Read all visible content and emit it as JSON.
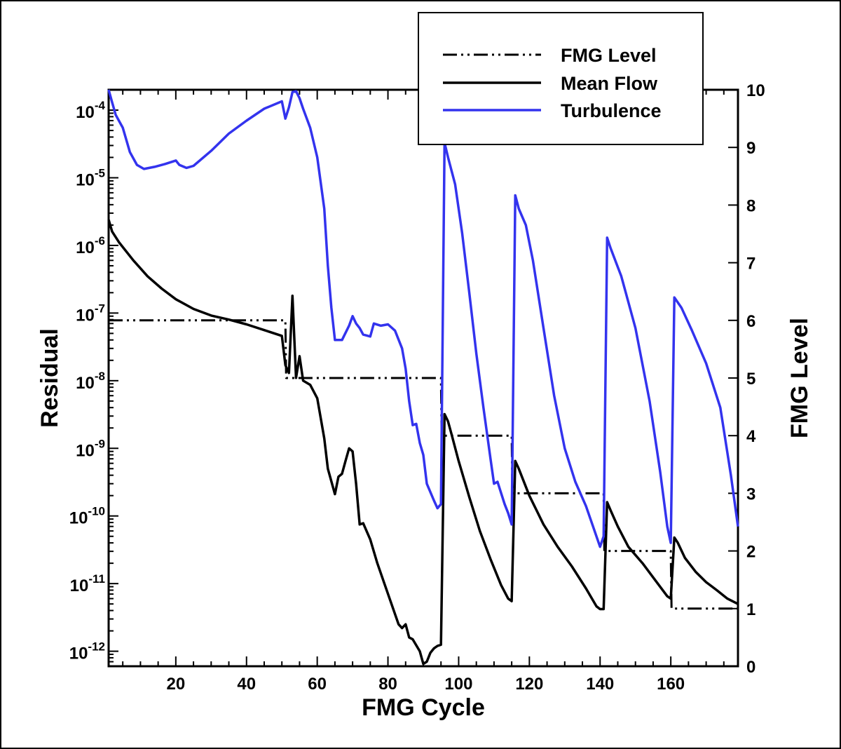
{
  "chart_data": {
    "type": "line",
    "xlabel": "FMG Cycle",
    "ylabel": "Residual",
    "y2label": "FMG Level",
    "xlim": [
      1,
      179
    ],
    "ylim": [
      6e-13,
      0.0002
    ],
    "y_scale": "log",
    "y2lim": [
      0,
      10
    ],
    "x_ticks": [
      {
        "value": 20,
        "label": "20"
      },
      {
        "value": 40,
        "label": "40"
      },
      {
        "value": 60,
        "label": "60"
      },
      {
        "value": 80,
        "label": "80"
      },
      {
        "value": 100,
        "label": "100"
      },
      {
        "value": 120,
        "label": "120"
      },
      {
        "value": 140,
        "label": "140"
      },
      {
        "value": 160,
        "label": "160"
      }
    ],
    "y_ticks": [
      {
        "value": 0.0001,
        "base": "10",
        "exp": "-4"
      },
      {
        "value": 1e-05,
        "base": "10",
        "exp": "-5"
      },
      {
        "value": 1e-06,
        "base": "10",
        "exp": "-6"
      },
      {
        "value": 1e-07,
        "base": "10",
        "exp": "-7"
      },
      {
        "value": 1e-08,
        "base": "10",
        "exp": "-8"
      },
      {
        "value": 1e-09,
        "base": "10",
        "exp": "-9"
      },
      {
        "value": 1e-10,
        "base": "10",
        "exp": "-10"
      },
      {
        "value": 1e-11,
        "base": "10",
        "exp": "-11"
      },
      {
        "value": 1e-12,
        "base": "10",
        "exp": "-12"
      }
    ],
    "y2_ticks": [
      {
        "value": 0,
        "label": "0"
      },
      {
        "value": 1,
        "label": "1"
      },
      {
        "value": 2,
        "label": "2"
      },
      {
        "value": 3,
        "label": "3"
      },
      {
        "value": 4,
        "label": "4"
      },
      {
        "value": 5,
        "label": "5"
      },
      {
        "value": 6,
        "label": "6"
      },
      {
        "value": 7,
        "label": "7"
      },
      {
        "value": 8,
        "label": "8"
      },
      {
        "value": 9,
        "label": "9"
      },
      {
        "value": 10,
        "label": "10"
      }
    ],
    "grid": false,
    "legend": "top-right",
    "series": [
      {
        "name": "FMG Level",
        "axis": "right",
        "color": "#000000",
        "style": "dash-dot-dot",
        "points": [
          [
            1,
            6
          ],
          [
            51,
            6
          ],
          [
            51.2,
            5
          ],
          [
            95,
            5
          ],
          [
            95.2,
            4
          ],
          [
            115,
            4
          ],
          [
            115.2,
            3
          ],
          [
            141,
            3
          ],
          [
            141.2,
            2
          ],
          [
            160,
            2
          ],
          [
            160.2,
            1
          ],
          [
            179,
            1
          ]
        ]
      },
      {
        "name": "Mean Flow",
        "axis": "left",
        "color": "#000000",
        "style": "solid",
        "points": [
          [
            1,
            2.4e-06
          ],
          [
            2,
            1.6e-06
          ],
          [
            4,
            1.1e-06
          ],
          [
            8,
            6e-07
          ],
          [
            12,
            3.5e-07
          ],
          [
            16,
            2.3e-07
          ],
          [
            20,
            1.6e-07
          ],
          [
            25,
            1.15e-07
          ],
          [
            30,
            9.2e-08
          ],
          [
            35,
            8e-08
          ],
          [
            40,
            6.8e-08
          ],
          [
            45,
            5.6e-08
          ],
          [
            50,
            4.6e-08
          ],
          [
            51,
            1.7e-08
          ],
          [
            52,
            1.3e-08
          ],
          [
            53,
            1.8e-07
          ],
          [
            54,
            1.1e-08
          ],
          [
            55,
            2.3e-08
          ],
          [
            56,
            1e-08
          ],
          [
            58,
            8.7e-09
          ],
          [
            60,
            5.5e-09
          ],
          [
            62,
            1.4e-09
          ],
          [
            63,
            5e-10
          ],
          [
            65,
            2.1e-10
          ],
          [
            66,
            3.8e-10
          ],
          [
            67,
            4.2e-10
          ],
          [
            68,
            6.5e-10
          ],
          [
            69,
            1e-09
          ],
          [
            70,
            9e-10
          ],
          [
            71,
            3e-10
          ],
          [
            72,
            7.5e-11
          ],
          [
            73,
            7.8e-11
          ],
          [
            75,
            4.5e-11
          ],
          [
            77,
            2e-11
          ],
          [
            79,
            1e-11
          ],
          [
            81,
            5e-12
          ],
          [
            83,
            2.5e-12
          ],
          [
            84,
            2.2e-12
          ],
          [
            85,
            2.5e-12
          ],
          [
            86,
            1.6e-12
          ],
          [
            87,
            1.5e-12
          ],
          [
            89,
            1e-12
          ],
          [
            90,
            6.5e-13
          ],
          [
            91,
            7e-13
          ],
          [
            92,
            9.5e-13
          ],
          [
            93,
            1.1e-12
          ],
          [
            94,
            1.2e-12
          ],
          [
            95,
            1.25e-12
          ],
          [
            96,
            3.2e-09
          ],
          [
            97,
            2.5e-09
          ],
          [
            98,
            1.6e-09
          ],
          [
            100,
            6.5e-10
          ],
          [
            103,
            1.9e-10
          ],
          [
            106,
            6e-11
          ],
          [
            109,
            2.3e-11
          ],
          [
            112,
            9.5e-12
          ],
          [
            114,
            6e-12
          ],
          [
            115,
            5.5e-12
          ],
          [
            116,
            6.5e-10
          ],
          [
            117,
            5e-10
          ],
          [
            120,
            2e-10
          ],
          [
            124,
            7.5e-11
          ],
          [
            128,
            3.5e-11
          ],
          [
            132,
            1.8e-11
          ],
          [
            136,
            8.5e-12
          ],
          [
            139,
            4.6e-12
          ],
          [
            140,
            4.2e-12
          ],
          [
            141,
            4.2e-12
          ],
          [
            142,
            1.6e-10
          ],
          [
            143,
            1.2e-10
          ],
          [
            145,
            7e-11
          ],
          [
            148,
            3.5e-11
          ],
          [
            152,
            2e-11
          ],
          [
            156,
            1.05e-11
          ],
          [
            159,
            6.5e-12
          ],
          [
            160,
            6e-12
          ],
          [
            161,
            4.8e-11
          ],
          [
            162,
            4e-11
          ],
          [
            164,
            2.4e-11
          ],
          [
            167,
            1.5e-11
          ],
          [
            170,
            1.05e-11
          ],
          [
            173,
            8e-12
          ],
          [
            176,
            6e-12
          ],
          [
            179,
            5e-12
          ]
        ]
      },
      {
        "name": "Turbulence",
        "axis": "left",
        "color": "#3333ee",
        "style": "solid",
        "points": [
          [
            1,
            0.0002
          ],
          [
            2,
            0.00013
          ],
          [
            3,
            8.5e-05
          ],
          [
            5,
            5.5e-05
          ],
          [
            7,
            2.4e-05
          ],
          [
            9,
            1.55e-05
          ],
          [
            11,
            1.35e-05
          ],
          [
            14,
            1.45e-05
          ],
          [
            17,
            1.6e-05
          ],
          [
            20,
            1.8e-05
          ],
          [
            21,
            1.55e-05
          ],
          [
            23,
            1.4e-05
          ],
          [
            25,
            1.5e-05
          ],
          [
            30,
            2.5e-05
          ],
          [
            35,
            4.5e-05
          ],
          [
            40,
            7e-05
          ],
          [
            45,
            0.000105
          ],
          [
            50,
            0.000135
          ],
          [
            51,
            7.5e-05
          ],
          [
            52,
            0.00011
          ],
          [
            53,
            0.000185
          ],
          [
            54,
            0.00019
          ],
          [
            55,
            0.00015
          ],
          [
            56,
            0.000105
          ],
          [
            58,
            5.5e-05
          ],
          [
            60,
            2e-05
          ],
          [
            62,
            3.5e-06
          ],
          [
            63,
            5e-07
          ],
          [
            64,
            1.2e-07
          ],
          [
            65,
            4e-08
          ],
          [
            67,
            4e-08
          ],
          [
            69,
            6.5e-08
          ],
          [
            70,
            9e-08
          ],
          [
            71,
            7e-08
          ],
          [
            72,
            6e-08
          ],
          [
            73,
            4.8e-08
          ],
          [
            75,
            4.5e-08
          ],
          [
            76,
            7e-08
          ],
          [
            78,
            6.5e-08
          ],
          [
            80,
            6.8e-08
          ],
          [
            82,
            5.5e-08
          ],
          [
            84,
            3e-08
          ],
          [
            85,
            1.5e-08
          ],
          [
            86,
            5e-09
          ],
          [
            87,
            2.2e-09
          ],
          [
            88,
            2.3e-09
          ],
          [
            89,
            1.2e-09
          ],
          [
            90,
            8e-10
          ],
          [
            91,
            3e-10
          ],
          [
            93,
            1.7e-10
          ],
          [
            94,
            1.3e-10
          ],
          [
            95,
            1.5e-10
          ],
          [
            96,
            3.3e-05
          ],
          [
            97,
            2e-05
          ],
          [
            99,
            8e-06
          ],
          [
            101,
            1.5e-06
          ],
          [
            103,
            2e-07
          ],
          [
            105,
            2.5e-08
          ],
          [
            107,
            4e-09
          ],
          [
            109,
            7e-10
          ],
          [
            110,
            3e-10
          ],
          [
            111,
            3.2e-10
          ],
          [
            113,
            1.5e-10
          ],
          [
            114,
            1.1e-10
          ],
          [
            115,
            7.5e-11
          ],
          [
            116,
            5.5e-06
          ],
          [
            117,
            3.5e-06
          ],
          [
            119,
            2e-06
          ],
          [
            121,
            6e-07
          ],
          [
            124,
            6e-08
          ],
          [
            127,
            6e-09
          ],
          [
            130,
            1e-09
          ],
          [
            133,
            3.2e-10
          ],
          [
            136,
            1.4e-10
          ],
          [
            138,
            7e-11
          ],
          [
            140,
            3.5e-11
          ],
          [
            141,
            5e-11
          ],
          [
            142,
            1.3e-06
          ],
          [
            143,
            9e-07
          ],
          [
            146,
            3.5e-07
          ],
          [
            150,
            6e-08
          ],
          [
            154,
            5e-09
          ],
          [
            157,
            4.5e-10
          ],
          [
            159,
            7e-11
          ],
          [
            160,
            4e-11
          ],
          [
            161,
            1.7e-07
          ],
          [
            163,
            1.2e-07
          ],
          [
            166,
            5.5e-08
          ],
          [
            170,
            1.8e-08
          ],
          [
            174,
            4e-09
          ],
          [
            177,
            4e-10
          ],
          [
            179,
            7e-11
          ]
        ]
      }
    ]
  }
}
